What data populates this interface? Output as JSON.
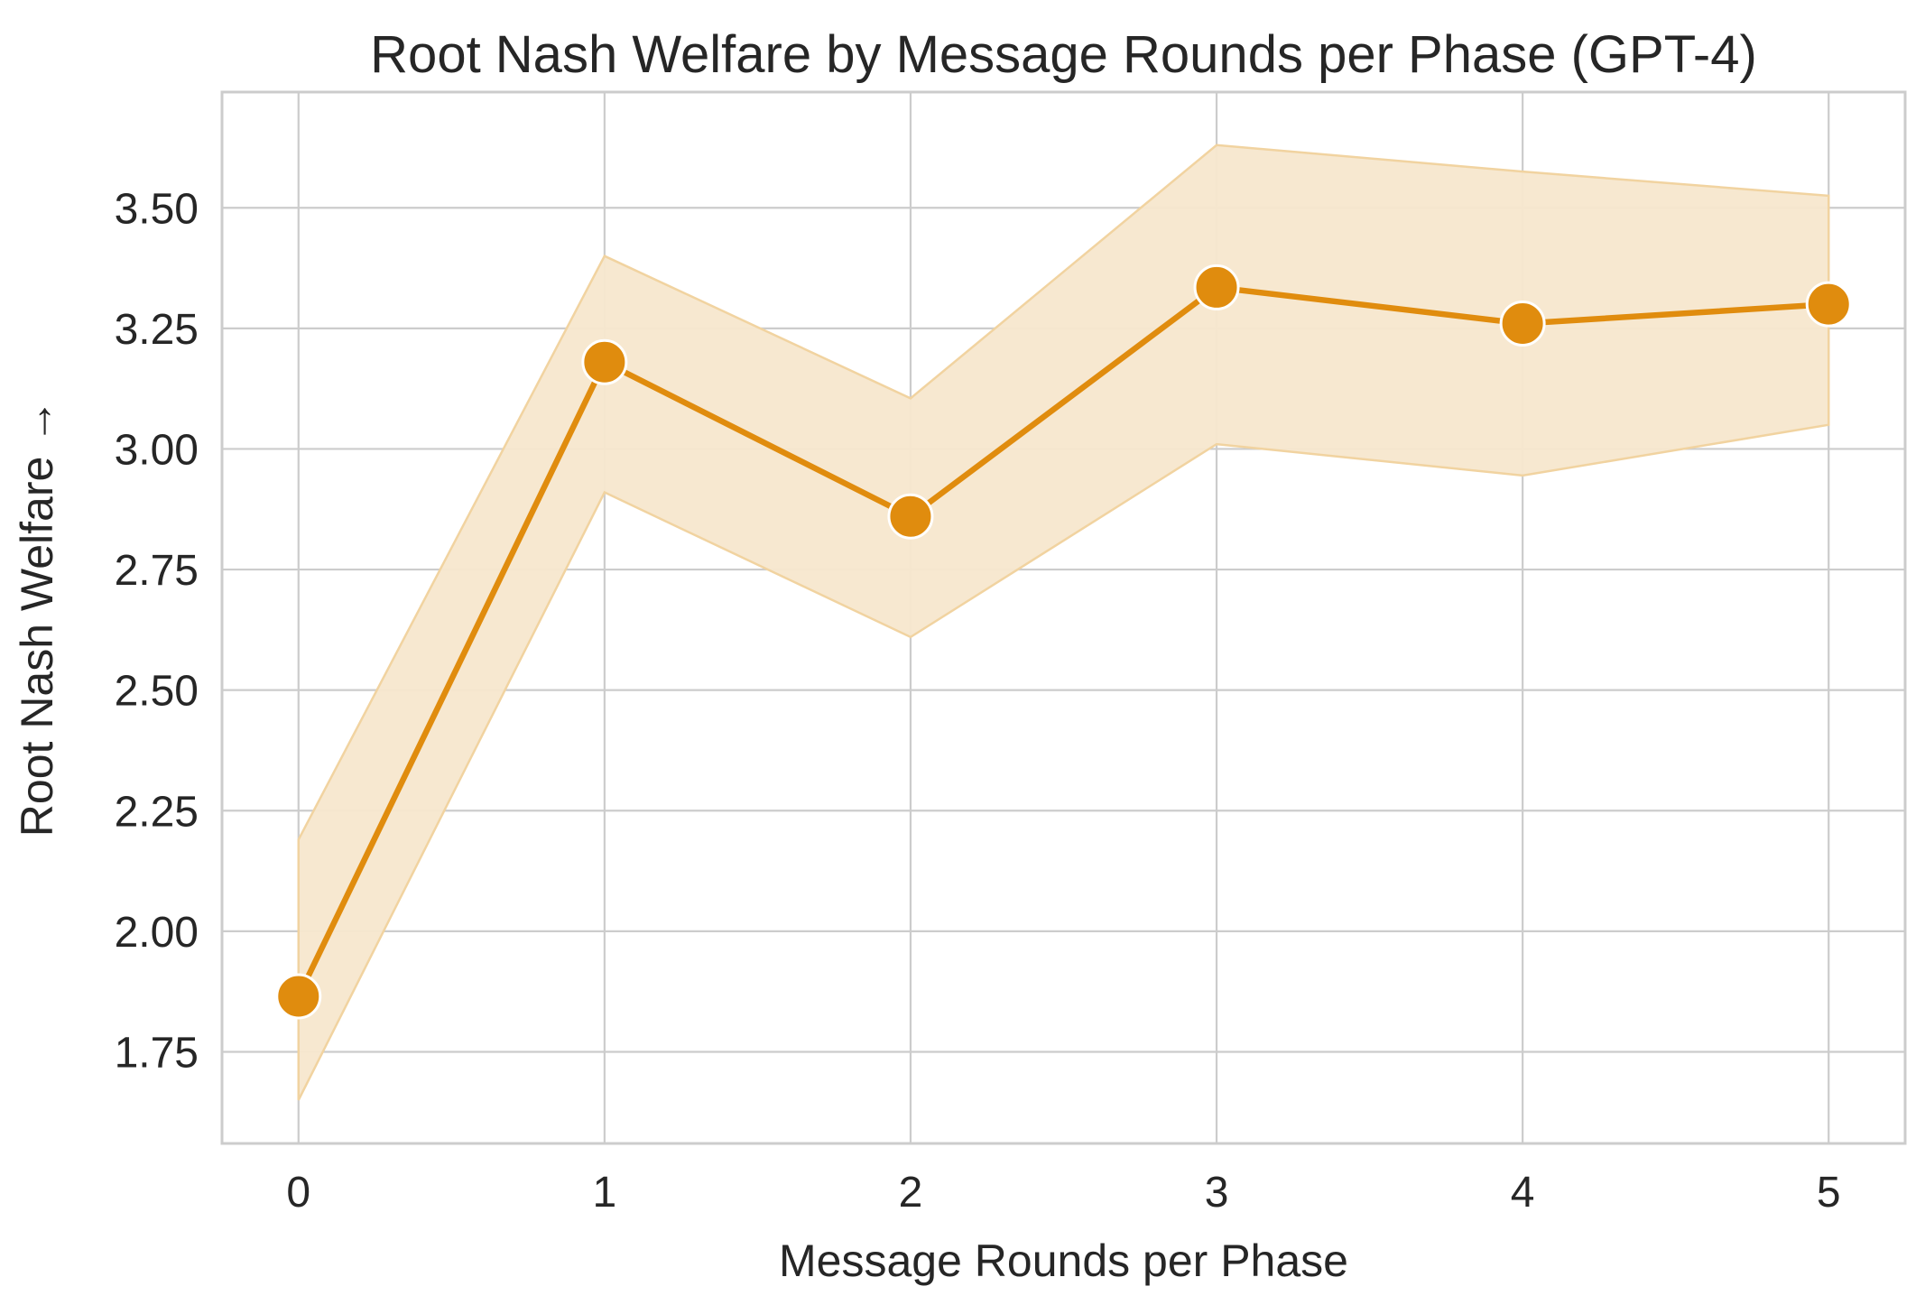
{
  "chart_data": {
    "type": "line",
    "title": "Root Nash Welfare by Message Rounds per Phase (GPT-4)",
    "xlabel": "Message Rounds per Phase",
    "ylabel": "Root Nash Welfare →",
    "x": [
      0,
      1,
      2,
      3,
      4,
      5
    ],
    "x_tick_labels": [
      "0",
      "1",
      "2",
      "3",
      "4",
      "5"
    ],
    "y_ticks": [
      1.75,
      2.0,
      2.25,
      2.5,
      2.75,
      3.0,
      3.25,
      3.5
    ],
    "y_tick_labels": [
      "1.75",
      "2.00",
      "2.25",
      "2.50",
      "2.75",
      "3.00",
      "3.25",
      "3.50"
    ],
    "xlim": [
      -0.25,
      5.25
    ],
    "ylim": [
      1.56,
      3.74
    ],
    "grid": true,
    "series": [
      {
        "values": [
          1.865,
          3.18,
          2.86,
          3.335,
          3.26,
          3.3
        ],
        "ci_lower": [
          1.65,
          2.91,
          2.61,
          3.01,
          2.945,
          3.05
        ],
        "ci_upper": [
          2.19,
          3.4,
          3.105,
          3.63,
          3.575,
          3.525
        ],
        "color": "#e08c0e",
        "band_color": "#f7e7cd",
        "band_edge_color": "#f1d3a0",
        "marker": "circle",
        "marker_edge_color": "#ffffff"
      }
    ]
  }
}
